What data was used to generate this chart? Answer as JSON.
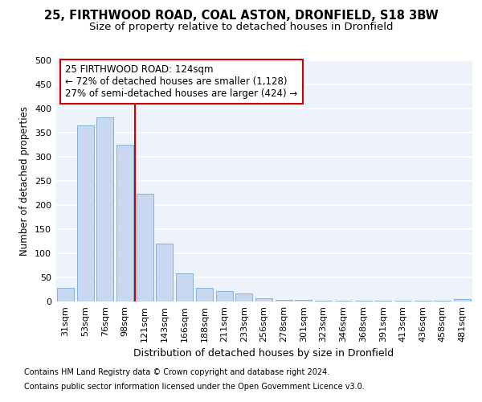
{
  "title1": "25, FIRTHWOOD ROAD, COAL ASTON, DRONFIELD, S18 3BW",
  "title2": "Size of property relative to detached houses in Dronfield",
  "xlabel": "Distribution of detached houses by size in Dronfield",
  "ylabel": "Number of detached properties",
  "bar_color": "#c8d8f0",
  "bar_edge_color": "#7aaad0",
  "categories": [
    "31sqm",
    "53sqm",
    "76sqm",
    "98sqm",
    "121sqm",
    "143sqm",
    "166sqm",
    "188sqm",
    "211sqm",
    "233sqm",
    "256sqm",
    "278sqm",
    "301sqm",
    "323sqm",
    "346sqm",
    "368sqm",
    "391sqm",
    "413sqm",
    "436sqm",
    "458sqm",
    "481sqm"
  ],
  "values": [
    28,
    365,
    382,
    325,
    224,
    120,
    58,
    28,
    22,
    16,
    6,
    4,
    3,
    2,
    2,
    2,
    2,
    2,
    2,
    1,
    5
  ],
  "property_bin_index": 4,
  "annotation_line1": "25 FIRTHWOOD ROAD: 124sqm",
  "annotation_line2": "← 72% of detached houses are smaller (1,128)",
  "annotation_line3": "27% of semi-detached houses are larger (424) →",
  "vline_color": "#cc0000",
  "annotation_box_facecolor": "#ffffff",
  "annotation_box_edgecolor": "#cc0000",
  "footer1": "Contains HM Land Registry data © Crown copyright and database right 2024.",
  "footer2": "Contains public sector information licensed under the Open Government Licence v3.0.",
  "ylim": [
    0,
    500
  ],
  "yticks": [
    0,
    50,
    100,
    150,
    200,
    250,
    300,
    350,
    400,
    450,
    500
  ],
  "bg_color": "#eef2fb",
  "grid_color": "#ffffff",
  "title1_fontsize": 10.5,
  "title2_fontsize": 9.5,
  "ylabel_fontsize": 8.5,
  "xlabel_fontsize": 9,
  "tick_fontsize": 8,
  "annot_fontsize": 8.5,
  "footer_fontsize": 7
}
